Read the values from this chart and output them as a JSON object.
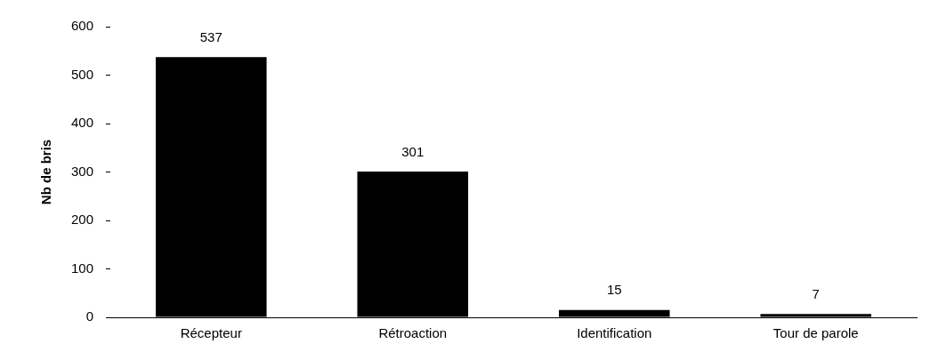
{
  "chart_data": {
    "type": "bar",
    "ylabel": "Nb de bris",
    "categories": [
      "Récepteur",
      "Rétroaction",
      "Identification",
      "Tour de parole"
    ],
    "values": [
      537,
      301,
      15,
      7
    ],
    "color": "#000000",
    "ylim": [
      0,
      600
    ],
    "yticks": [
      0,
      100,
      200,
      300,
      400,
      500,
      600
    ],
    "grid": false,
    "data_labels": true,
    "legend": false
  }
}
